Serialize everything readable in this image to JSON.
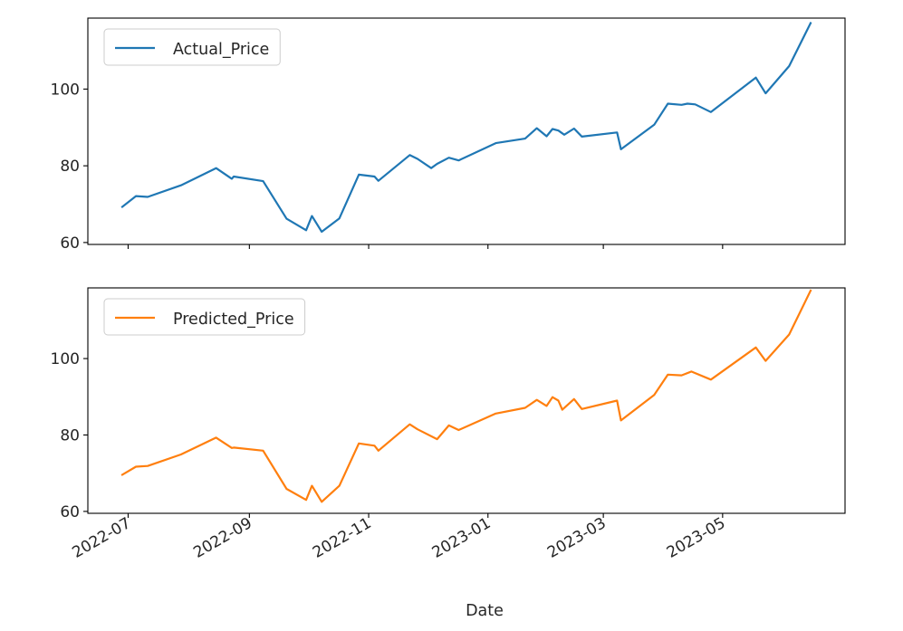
{
  "chart_data": [
    {
      "type": "line",
      "xlabel": "",
      "ylabel": "",
      "ylim": [
        59.5,
        118.5
      ],
      "yticks": [
        60,
        80,
        100
      ],
      "xticks": [
        "2022-07",
        "2022-09",
        "2022-11",
        "2023-01",
        "2023-03",
        "2023-05"
      ],
      "xtick_labels_visible": false,
      "legend_loc": "upper left",
      "grid": false,
      "series": [
        {
          "name": "Actual_Price",
          "color": "#1f77b4",
          "points": [
            [
              "2022-06-28",
              69.3
            ],
            [
              "2022-07-05",
              72.1
            ],
            [
              "2022-07-11",
              71.9
            ],
            [
              "2022-07-28",
              74.9
            ],
            [
              "2022-08-15",
              79.4
            ],
            [
              "2022-08-23",
              76.6
            ],
            [
              "2022-08-24",
              77.2
            ],
            [
              "2022-09-08",
              76.0
            ],
            [
              "2022-09-20",
              66.2
            ],
            [
              "2022-09-30",
              63.2
            ],
            [
              "2022-10-03",
              66.9
            ],
            [
              "2022-10-08",
              62.8
            ],
            [
              "2022-10-17",
              66.3
            ],
            [
              "2022-10-27",
              77.7
            ],
            [
              "2022-11-04",
              77.2
            ],
            [
              "2022-11-06",
              76.1
            ],
            [
              "2022-11-22",
              82.8
            ],
            [
              "2022-11-26",
              81.8
            ],
            [
              "2022-12-03",
              79.4
            ],
            [
              "2022-12-06",
              80.5
            ],
            [
              "2022-12-12",
              82.1
            ],
            [
              "2022-12-17",
              81.4
            ],
            [
              "2023-01-05",
              85.9
            ],
            [
              "2023-01-20",
              87.1
            ],
            [
              "2023-01-26",
              89.8
            ],
            [
              "2023-01-31",
              87.7
            ],
            [
              "2023-02-03",
              89.6
            ],
            [
              "2023-02-06",
              89.2
            ],
            [
              "2023-02-09",
              88.1
            ],
            [
              "2023-02-14",
              89.7
            ],
            [
              "2023-02-18",
              87.6
            ],
            [
              "2023-03-08",
              88.7
            ],
            [
              "2023-03-10",
              84.3
            ],
            [
              "2023-03-27",
              90.7
            ],
            [
              "2023-04-03",
              96.2
            ],
            [
              "2023-04-10",
              95.9
            ],
            [
              "2023-04-13",
              96.2
            ],
            [
              "2023-04-17",
              96.0
            ],
            [
              "2023-04-25",
              94.0
            ],
            [
              "2023-05-18",
              103.0
            ],
            [
              "2023-05-23",
              98.9
            ],
            [
              "2023-06-04",
              106.0
            ],
            [
              "2023-06-15",
              117.2
            ]
          ]
        }
      ]
    },
    {
      "type": "line",
      "xlabel": "Date",
      "ylabel": "",
      "ylim": [
        59.5,
        118.5
      ],
      "yticks": [
        60,
        80,
        100
      ],
      "xticks": [
        "2022-07",
        "2022-09",
        "2022-11",
        "2023-01",
        "2023-03",
        "2023-05"
      ],
      "xtick_labels_visible": true,
      "legend_loc": "upper left",
      "grid": false,
      "series": [
        {
          "name": "Predicted_Price",
          "color": "#ff7f0e",
          "points": [
            [
              "2022-06-28",
              69.6
            ],
            [
              "2022-07-05",
              71.7
            ],
            [
              "2022-07-11",
              71.9
            ],
            [
              "2022-07-28",
              74.9
            ],
            [
              "2022-08-15",
              79.3
            ],
            [
              "2022-08-23",
              76.6
            ],
            [
              "2022-08-24",
              76.7
            ],
            [
              "2022-09-08",
              75.9
            ],
            [
              "2022-09-20",
              65.9
            ],
            [
              "2022-09-30",
              63.0
            ],
            [
              "2022-10-03",
              66.7
            ],
            [
              "2022-10-08",
              62.5
            ],
            [
              "2022-10-17",
              66.7
            ],
            [
              "2022-10-27",
              77.8
            ],
            [
              "2022-11-04",
              77.2
            ],
            [
              "2022-11-06",
              75.9
            ],
            [
              "2022-11-22",
              82.8
            ],
            [
              "2022-11-26",
              81.5
            ],
            [
              "2022-12-06",
              78.9
            ],
            [
              "2022-12-12",
              82.5
            ],
            [
              "2022-12-17",
              81.3
            ],
            [
              "2023-01-05",
              85.6
            ],
            [
              "2023-01-20",
              87.1
            ],
            [
              "2023-01-26",
              89.2
            ],
            [
              "2023-01-31",
              87.6
            ],
            [
              "2023-02-03",
              89.9
            ],
            [
              "2023-02-06",
              89.0
            ],
            [
              "2023-02-08",
              86.6
            ],
            [
              "2023-02-14",
              89.4
            ],
            [
              "2023-02-18",
              86.8
            ],
            [
              "2023-03-08",
              89.0
            ],
            [
              "2023-03-10",
              83.8
            ],
            [
              "2023-03-27",
              90.5
            ],
            [
              "2023-04-03",
              95.8
            ],
            [
              "2023-04-10",
              95.6
            ],
            [
              "2023-04-15",
              96.6
            ],
            [
              "2023-04-25",
              94.5
            ],
            [
              "2023-05-18",
              102.9
            ],
            [
              "2023-05-23",
              99.4
            ],
            [
              "2023-06-04",
              106.3
            ],
            [
              "2023-06-15",
              117.8
            ]
          ]
        }
      ]
    }
  ]
}
